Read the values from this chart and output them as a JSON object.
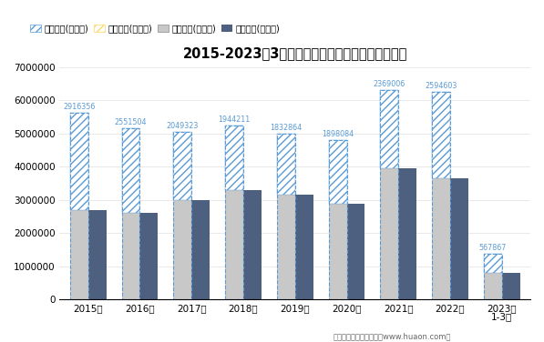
{
  "title": "2015-2023年3月浙江省外商投资企业进出口差额图",
  "categories": [
    "2015年",
    "2016年",
    "2017年",
    "2018年",
    "2019年",
    "2020年",
    "2021年",
    "2022年",
    "2023年\n1-3月"
  ],
  "export_total": [
    5616356,
    5151504,
    5049323,
    5244211,
    4982864,
    4798084,
    6319006,
    6244603,
    1367867
  ],
  "import_total": [
    2700000,
    2600000,
    3000000,
    3300000,
    3150000,
    2900000,
    3950000,
    3650000,
    800000
  ],
  "surplus": [
    2916356,
    2551504,
    2049323,
    1944211,
    1832864,
    1898084,
    2369006,
    2594603,
    567867
  ],
  "bar_width": 0.35,
  "ylim": [
    0,
    7000000
  ],
  "yticks": [
    0,
    1000000,
    2000000,
    3000000,
    4000000,
    5000000,
    6000000,
    7000000
  ],
  "export_color": "#C8C8C8",
  "import_color": "#4E6080",
  "surplus_color": "#5B9BD5",
  "deficit_color": "#FFD966",
  "footer": "制图：华经产业研究院（www.huaon.com）",
  "legend_items": [
    "贸易顺差(万美元)",
    "贸易逆差(万美元)",
    "出口总额(万美元)",
    "进口总额(万美元)"
  ]
}
